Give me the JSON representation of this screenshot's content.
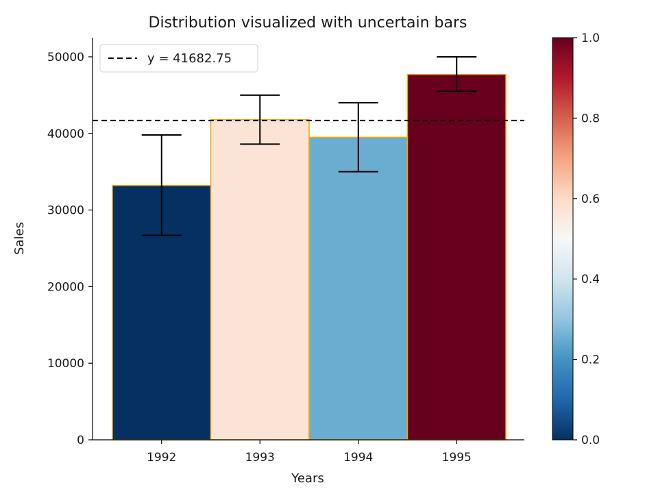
{
  "chart_data": {
    "type": "bar",
    "title": "Distribution visualized with uncertain bars",
    "xlabel": "Years",
    "ylabel": "Sales",
    "categories": [
      "1992",
      "1993",
      "1994",
      "1995"
    ],
    "values": [
      33200,
      41800,
      39500,
      47700
    ],
    "error_low": [
      26700,
      38600,
      35000,
      45500
    ],
    "error_high": [
      39800,
      45000,
      44000,
      50000
    ],
    "bar_color_values": [
      0.0,
      0.57,
      0.25,
      1.0
    ],
    "bar_edge_color": "#f2a900",
    "ylim": [
      0,
      52500
    ],
    "yticks": [
      "0",
      "10000",
      "20000",
      "30000",
      "40000",
      "50000"
    ],
    "reference_line": {
      "y": 41682.75,
      "label": "y = 41682.75",
      "style": "dashed",
      "color": "#000000"
    },
    "legend": {
      "entries": [
        "y = 41682.75"
      ],
      "placement": "top-left"
    },
    "colorbar": {
      "colormap": "RdBu_r",
      "range": [
        0.0,
        1.0
      ],
      "ticks": [
        "0.0",
        "0.2",
        "0.4",
        "0.6",
        "0.8",
        "1.0"
      ],
      "stops": [
        "#053061",
        "#2166ac",
        "#4393c3",
        "#92c5de",
        "#d1e5f0",
        "#f7f7f7",
        "#fddbc7",
        "#f4a582",
        "#d6604d",
        "#b2182b",
        "#67001f"
      ]
    },
    "grid": false
  }
}
